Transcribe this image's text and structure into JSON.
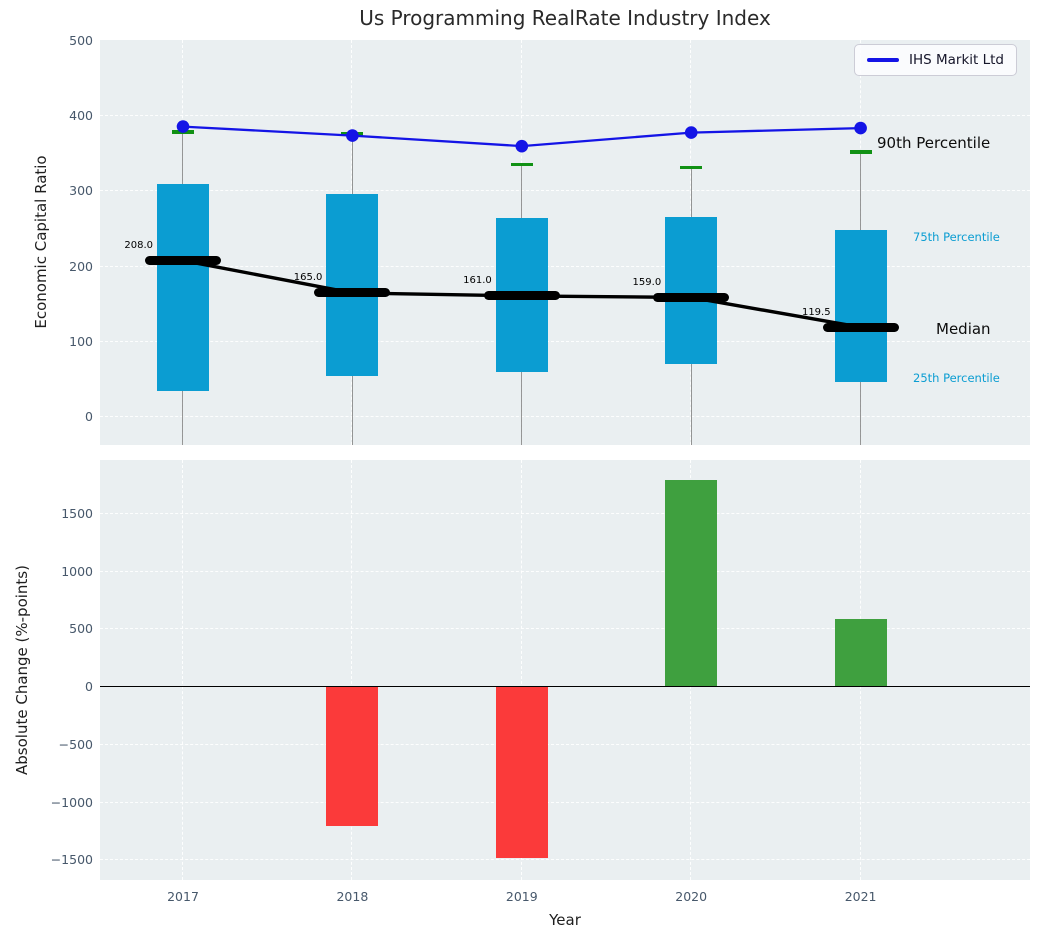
{
  "title": "Us Programming RealRate Industry Index",
  "legend": {
    "label": "IHS Markit Ltd"
  },
  "annotations": {
    "p90": "90th Percentile",
    "p75": "75th Percentile",
    "median": "Median",
    "p25": "25th Percentile"
  },
  "colors": {
    "panel_bg": "#eaeff1",
    "grid": "#ffffff",
    "box": "#0b9dd2",
    "cap_green": "#119114",
    "company_line": "#1414e6",
    "median_black": "#000000",
    "bar_up": "#3fa03f",
    "bar_down": "#fb3a3a",
    "tick_text": "#47586b",
    "whisker": "#7d7d7d"
  },
  "chart_data": [
    {
      "type": "boxplot+line",
      "panel": "top",
      "title": "Us Programming RealRate Industry Index",
      "ylabel": "Economic Capital Ratio",
      "categories": [
        2017,
        2018,
        2019,
        2020,
        2021
      ],
      "series": [
        {
          "name": "IHS Markit Ltd",
          "role": "company-line",
          "values": [
            386,
            374,
            360,
            378,
            384
          ]
        },
        {
          "name": "90th Percentile",
          "role": "whisker-cap",
          "values": [
            379,
            376,
            336,
            332,
            352
          ]
        },
        {
          "name": "75th Percentile",
          "role": "box-top",
          "values": [
            310,
            297,
            264,
            266,
            249
          ]
        },
        {
          "name": "Median",
          "role": "median",
          "values": [
            208.0,
            165.0,
            161.0,
            159.0,
            119.5
          ],
          "labels": [
            "208.0",
            "165.0",
            "161.0",
            "159.0",
            "119.5"
          ]
        },
        {
          "name": "25th Percentile",
          "role": "box-bottom",
          "values": [
            35,
            54,
            60,
            71,
            47
          ]
        }
      ],
      "yticks": [
        0,
        100,
        200,
        300,
        400,
        500
      ],
      "ylim": [
        -37,
        501
      ],
      "xlim": [
        2016.51,
        2022.0
      ],
      "grid": true,
      "legend_position": "upper right"
    },
    {
      "type": "bar",
      "panel": "bottom",
      "ylabel": "Absolute Change (%-points)",
      "xlabel": "Year",
      "categories": [
        2017,
        2018,
        2019,
        2020,
        2021
      ],
      "values": [
        null,
        -1200,
        -1480,
        1790,
        590
      ],
      "yticks": [
        1500,
        1000,
        500,
        0,
        -500,
        -1000,
        -1500
      ],
      "ylim": [
        -1671,
        1966
      ],
      "xlim": [
        2016.51,
        2022.0
      ],
      "grid": true,
      "zero_line": true
    }
  ]
}
